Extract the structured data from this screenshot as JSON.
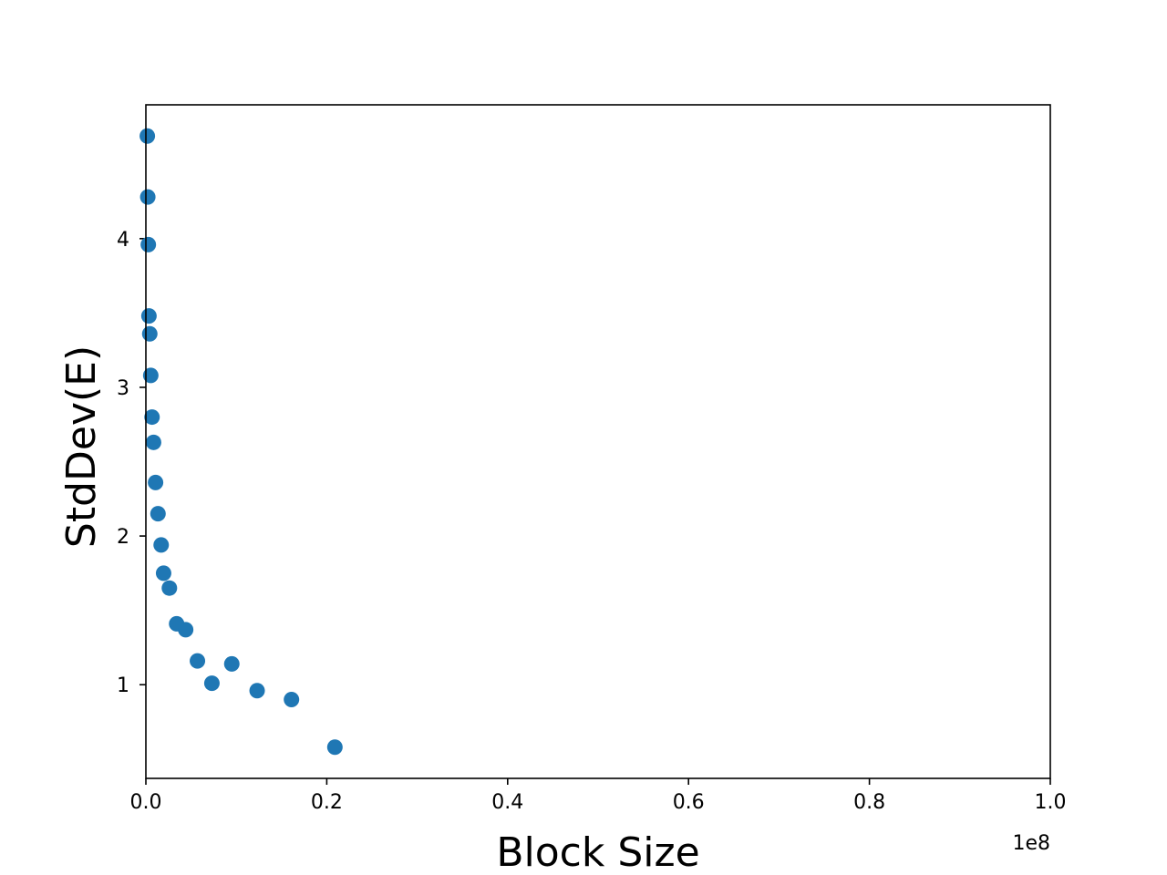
{
  "chart_data": {
    "type": "scatter",
    "title": "",
    "xlabel": "Block Size",
    "ylabel": "StdDev(E)",
    "x_offset_label": "1e8",
    "xlim": [
      0,
      1.0
    ],
    "ylim": [
      0.37,
      4.9
    ],
    "xticks": [
      0.0,
      0.2,
      0.4,
      0.6,
      0.8,
      1.0
    ],
    "xtick_labels": [
      "0.0",
      "0.2",
      "0.4",
      "0.6",
      "0.8",
      "1.0"
    ],
    "yticks": [
      1,
      2,
      3,
      4
    ],
    "ytick_labels": [
      "1",
      "2",
      "3",
      "4"
    ],
    "grid": false,
    "legend": "none",
    "marker_color": "#1f77b4",
    "series": [
      {
        "x": [
          0.0016,
          0.0021,
          0.0027,
          0.0034,
          0.0043,
          0.0054,
          0.0068,
          0.0085,
          0.0107,
          0.0134,
          0.0169,
          0.0196,
          0.026,
          0.034,
          0.044,
          0.057,
          0.073,
          0.095,
          0.123,
          0.161,
          0.209
        ],
        "y": [
          4.69,
          4.28,
          3.96,
          3.48,
          3.36,
          3.08,
          2.8,
          2.63,
          2.36,
          2.15,
          1.94,
          1.75,
          1.65,
          1.41,
          1.37,
          1.16,
          1.01,
          1.14,
          0.96,
          0.9,
          0.58
        ]
      }
    ]
  }
}
